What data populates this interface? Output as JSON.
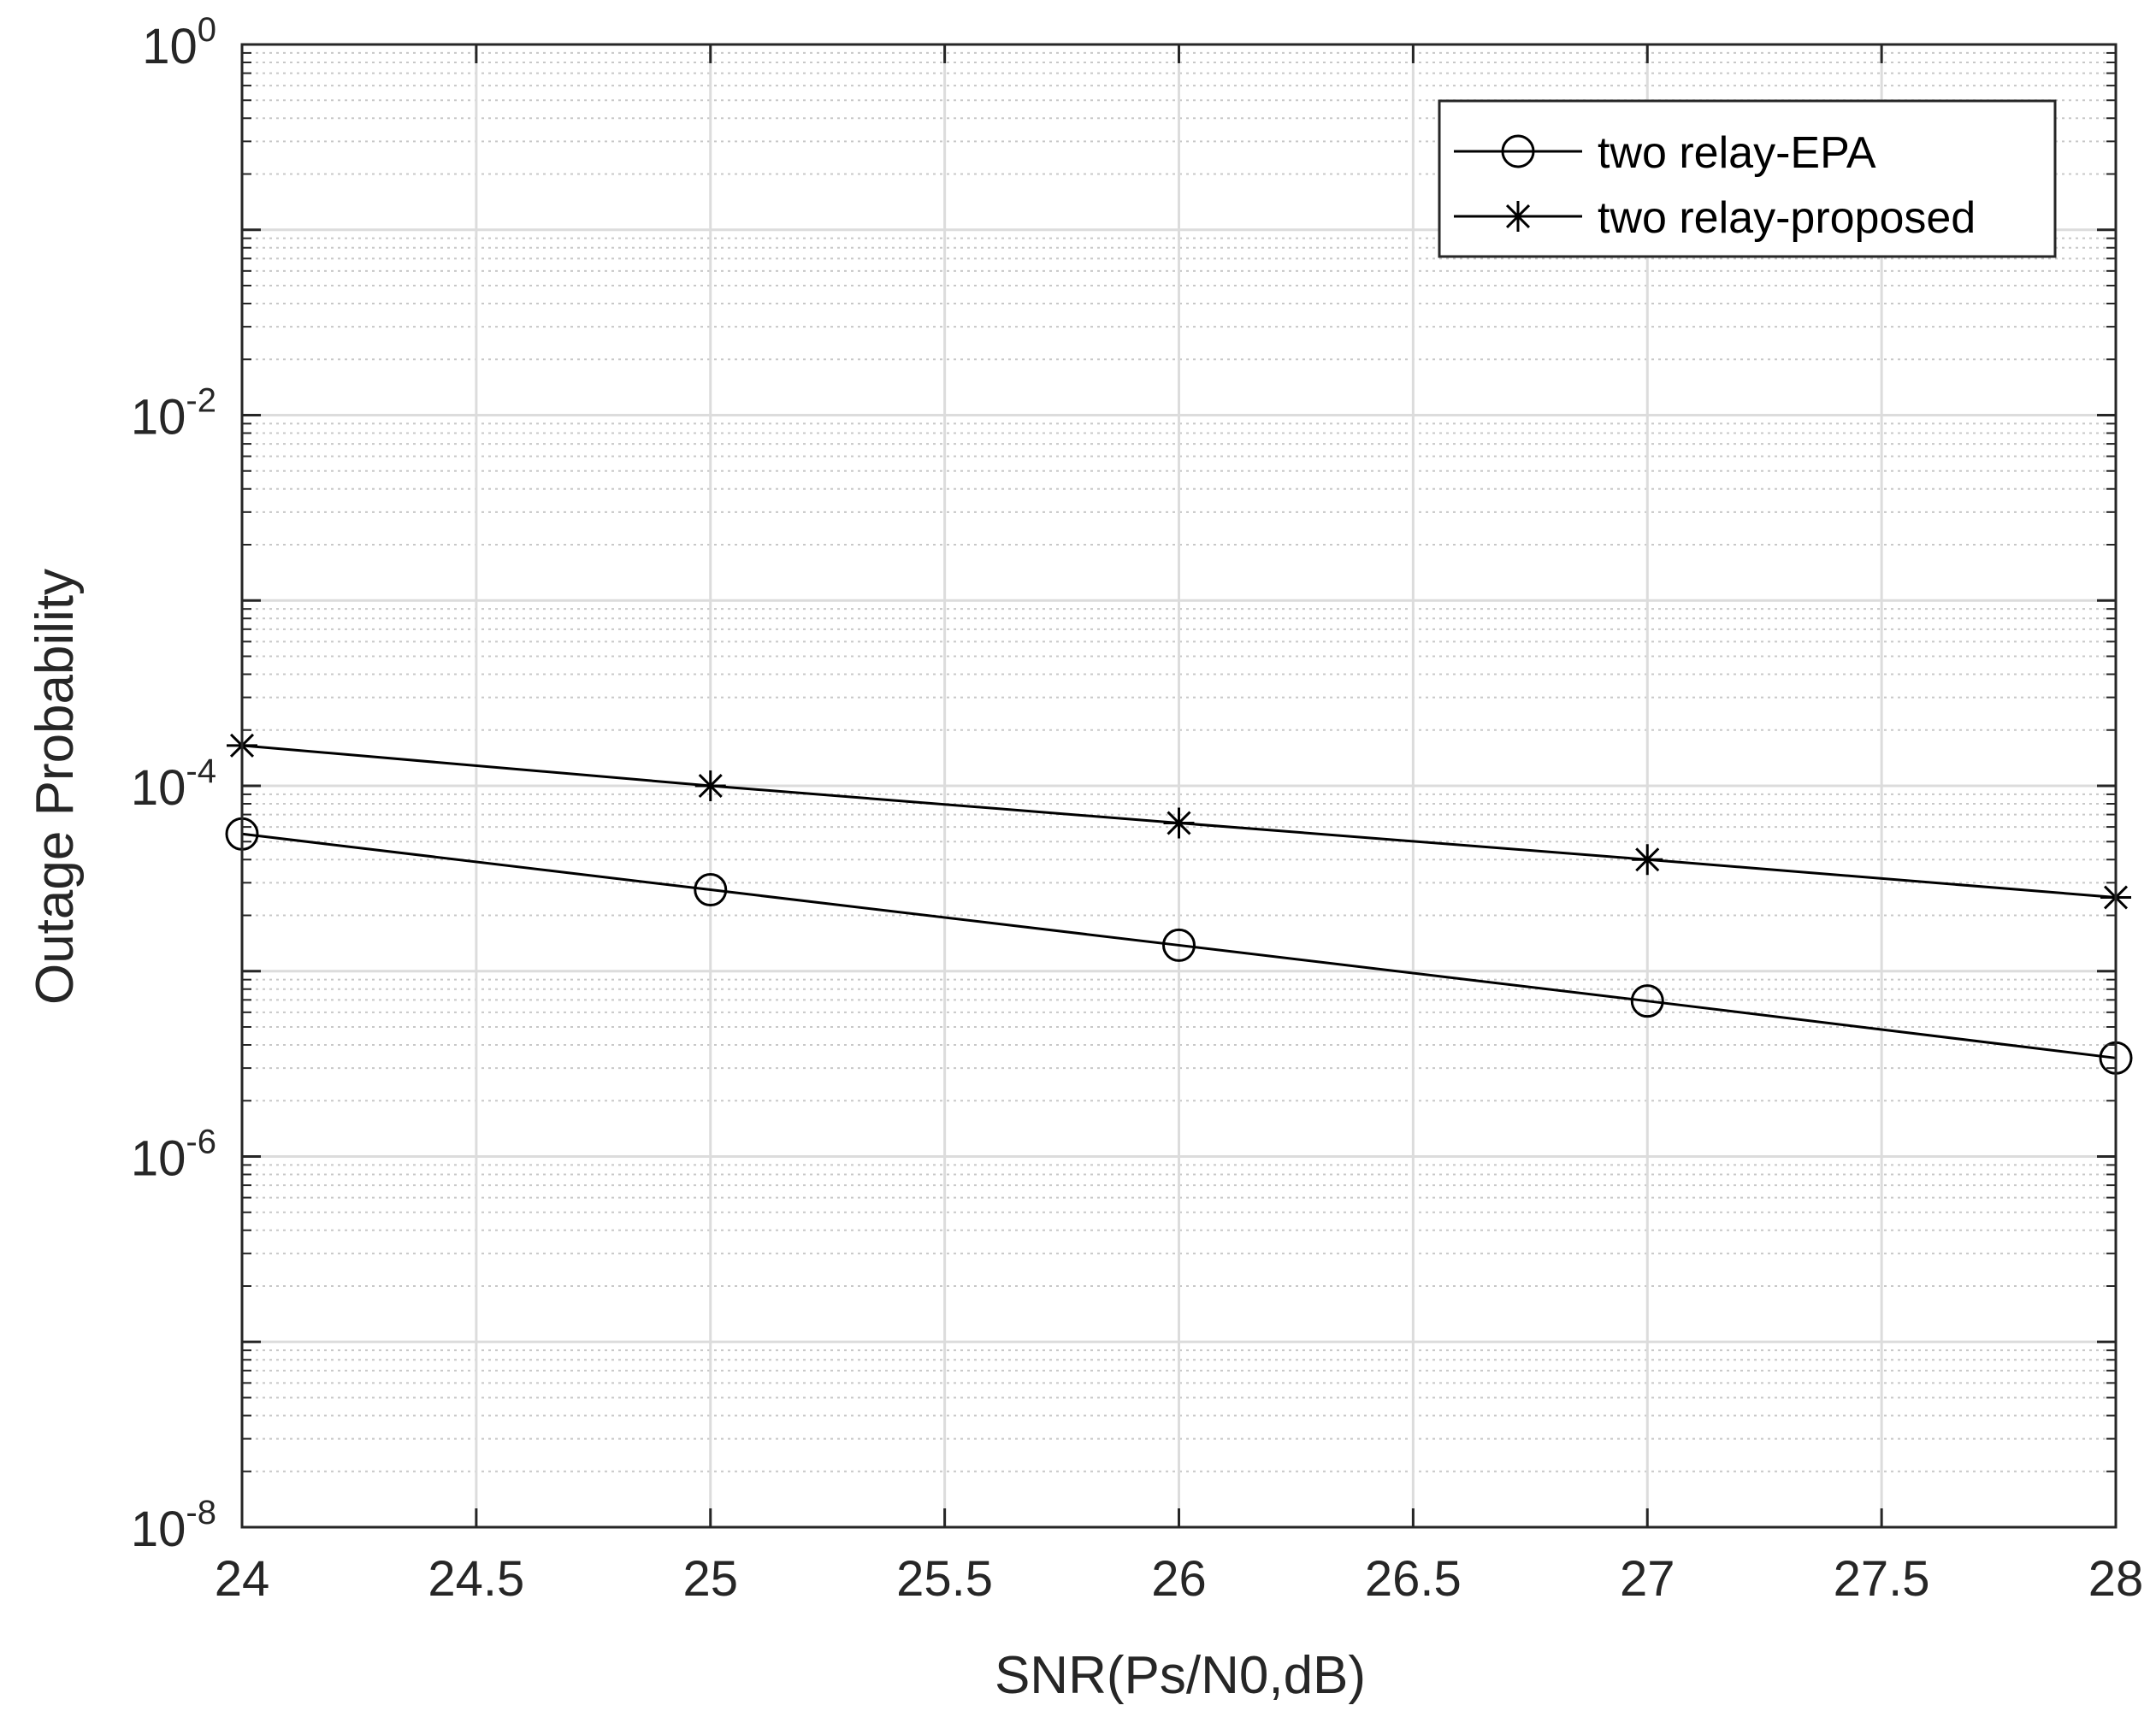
{
  "chart_data": {
    "type": "line",
    "title": "",
    "xlabel": "SNR(Ps/N0,dB)",
    "ylabel": "Outage Probability",
    "xlim": [
      24,
      28
    ],
    "ylim": [
      1e-08,
      1
    ],
    "yscale": "log",
    "grid": true,
    "minor_grid": true,
    "legend_position": "top-right",
    "x_ticks": [
      24,
      24.5,
      25,
      25.5,
      26,
      26.5,
      27,
      27.5,
      28
    ],
    "x_tick_labels": [
      "24",
      "24.5",
      "25",
      "25.5",
      "26",
      "26.5",
      "27",
      "27.5",
      "28"
    ],
    "y_ticks": [
      {
        "value": 1,
        "base": "10",
        "exp": "0"
      },
      {
        "value": 0.01,
        "base": "10",
        "exp": "-2"
      },
      {
        "value": 0.0001,
        "base": "10",
        "exp": "-4"
      },
      {
        "value": 1e-06,
        "base": "10",
        "exp": "-6"
      },
      {
        "value": 1e-08,
        "base": "10",
        "exp": "-8"
      }
    ],
    "x": [
      24,
      25,
      26,
      27,
      28
    ],
    "series": [
      {
        "name": "two relay-EPA",
        "marker": "circle",
        "color": "#000000",
        "values": [
          5.5e-05,
          2.75e-05,
          1.38e-05,
          6.9e-06,
          3.4e-06
        ]
      },
      {
        "name": "two relay-proposed",
        "marker": "star",
        "color": "#000000",
        "values": [
          0.000165,
          0.0001,
          6.3e-05,
          4e-05,
          2.5e-05
        ]
      }
    ],
    "colors": {
      "axis": "#262626",
      "grid_major": "#dcdcdc",
      "grid_minor": "#c8c8c8",
      "line": "#000000"
    }
  }
}
